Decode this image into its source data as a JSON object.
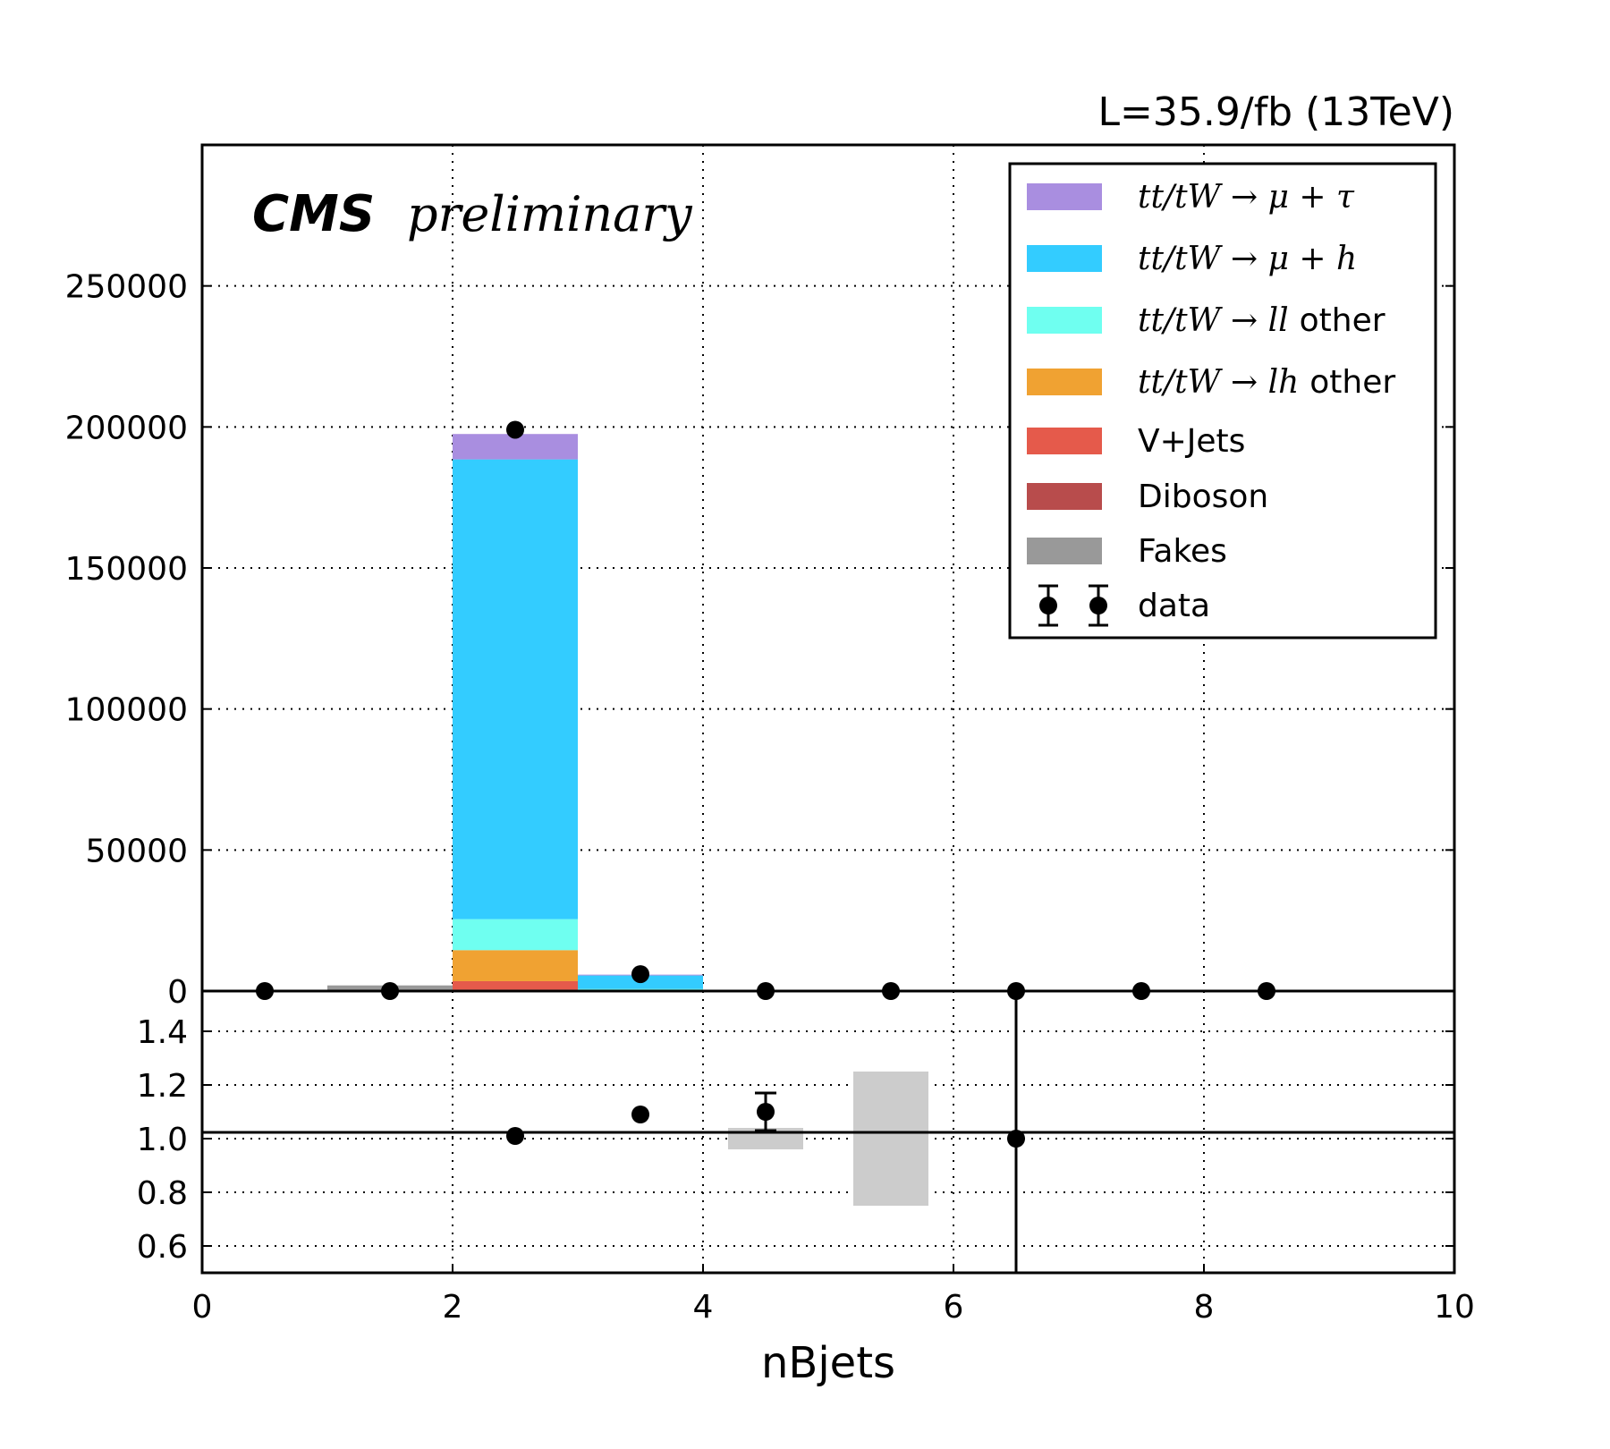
{
  "header": {
    "lumi": "L=35.9/fb (13TeV)",
    "cms": "CMS",
    "preliminary": "preliminary"
  },
  "colors": {
    "ttmutau": "#a98ee0",
    "ttmuh": "#33ccff",
    "ttll": "#6ffff0",
    "ttlh": "#f0a232",
    "vjets": "#e55a4b",
    "diboson": "#b84c4c",
    "fakes": "#999999",
    "data": "#000000",
    "ratio_unc": "#cccccc"
  },
  "chart_data": [
    {
      "type": "bar",
      "subtype": "stacked-histogram",
      "xlabel": "nBjets",
      "xlim": [
        0,
        10
      ],
      "ylim": [
        0,
        300000
      ],
      "xticks": [
        "0",
        "2",
        "4",
        "6",
        "8",
        "10"
      ],
      "yticks": [
        "0",
        "50000",
        "100000",
        "150000",
        "200000",
        "250000"
      ],
      "grid": true,
      "legend_position": "top-right",
      "bin_edges": [
        0,
        1,
        2,
        3,
        4,
        5,
        6,
        7,
        8,
        9,
        10
      ],
      "series": [
        {
          "key": "fakes",
          "name": "Fakes",
          "values": [
            0,
            2000,
            0,
            0,
            0,
            0,
            0,
            0,
            0,
            0
          ]
        },
        {
          "key": "diboson",
          "name": "Diboson",
          "values": [
            0,
            0,
            500,
            20,
            0,
            0,
            0,
            0,
            0,
            0
          ]
        },
        {
          "key": "vjets",
          "name": "V+Jets",
          "values": [
            0,
            0,
            3000,
            100,
            0,
            0,
            0,
            0,
            0,
            0
          ]
        },
        {
          "key": "ttlh",
          "name": "other",
          "math": "tt/tW → lh",
          "values": [
            0,
            0,
            11000,
            300,
            0,
            0,
            0,
            0,
            0,
            0
          ]
        },
        {
          "key": "ttll",
          "name": "other",
          "math": "tt/tW → ll",
          "values": [
            0,
            0,
            11000,
            300,
            0,
            0,
            0,
            0,
            0,
            0
          ]
        },
        {
          "key": "ttmuh",
          "name": "",
          "math": "tt/tW → μ + h",
          "values": [
            0,
            0,
            163000,
            4800,
            0,
            0,
            0,
            0,
            0,
            0
          ]
        },
        {
          "key": "ttmutau",
          "name": "",
          "math": "tt/tW → μ + τ",
          "values": [
            0,
            0,
            9000,
            300,
            0,
            0,
            0,
            0,
            0,
            0
          ]
        }
      ],
      "data": {
        "name": "data",
        "x": [
          0.5,
          1.5,
          2.5,
          3.5,
          4.5,
          5.5,
          6.5,
          7.5,
          8.5
        ],
        "y": [
          0,
          0,
          199000,
          6000,
          0,
          0,
          0,
          0,
          0
        ]
      }
    },
    {
      "type": "scatter",
      "subtype": "ratio",
      "xlabel": "nBjets",
      "xlim": [
        0,
        10
      ],
      "ylim": [
        0.5,
        1.55
      ],
      "yticks": [
        "0.6",
        "0.8",
        "1.0",
        "1.2",
        "1.4"
      ],
      "reference_line": 1.0,
      "points": [
        {
          "x": 2.5,
          "y": 1.01,
          "err": 0.005
        },
        {
          "x": 3.5,
          "y": 1.09,
          "err": 0.01
        },
        {
          "x": 4.5,
          "y": 1.1,
          "err": 0.07
        },
        {
          "x": 6.5,
          "y": 1.0,
          "err": 10
        }
      ],
      "uncertainty_bands": [
        {
          "x0": 4.2,
          "x1": 4.8,
          "low": 0.96,
          "high": 1.04
        },
        {
          "x0": 5.2,
          "x1": 5.8,
          "low": 0.75,
          "high": 1.25
        }
      ]
    }
  ]
}
